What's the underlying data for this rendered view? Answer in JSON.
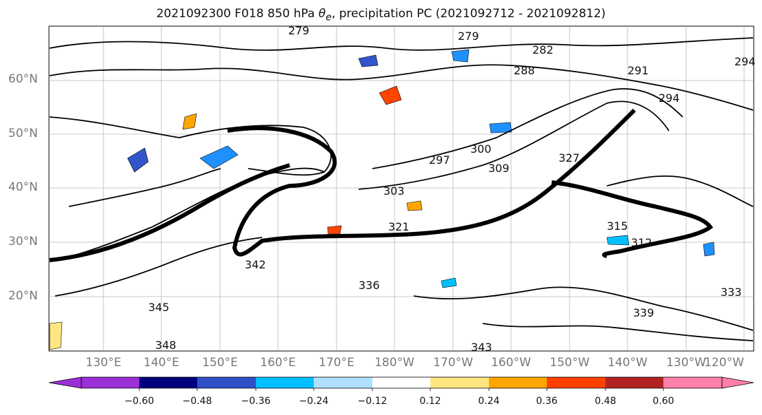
{
  "title": {
    "prefix": "2021092300 F018 850 hPa ",
    "theta_symbol": "θ",
    "theta_sub": "e",
    "suffix": ", precipitation PC (2021092712 - 2021092812)"
  },
  "map": {
    "lat_labels": [
      "60°N",
      "50°N",
      "40°N",
      "30°N",
      "20°N"
    ],
    "lon_labels": [
      "130°E",
      "140°E",
      "150°E",
      "160°E",
      "170°E",
      "180°W",
      "170°W",
      "160°W",
      "150°W",
      "140°W",
      "130°W",
      "120°W"
    ],
    "gridlines": true,
    "contour_variable": "850 hPa theta-e",
    "contour_color": "#000000",
    "contour_labels": [
      "279",
      "279",
      "282",
      "288",
      "291",
      "294",
      "294",
      "297",
      "300",
      "303",
      "309",
      "312",
      "315",
      "321",
      "327",
      "333",
      "336",
      "339",
      "342",
      "343",
      "345",
      "348"
    ],
    "fill_colors_present": [
      "#1e90ff",
      "#00bfff",
      "#ffa500",
      "#ff4500",
      "#ffe680",
      "#3355cc"
    ]
  },
  "colorbar": {
    "labels": [
      "−0.60",
      "−0.48",
      "−0.36",
      "−0.24",
      "−0.12",
      "0.12",
      "0.24",
      "0.36",
      "0.48",
      "0.60"
    ],
    "colors": [
      "#9b30d6",
      "#00007f",
      "#3050c8",
      "#00bfff",
      "#b0e0ff",
      "#ffffff",
      "#ffe680",
      "#ffa500",
      "#ff4000",
      "#b22222",
      "#ff80aa"
    ]
  }
}
